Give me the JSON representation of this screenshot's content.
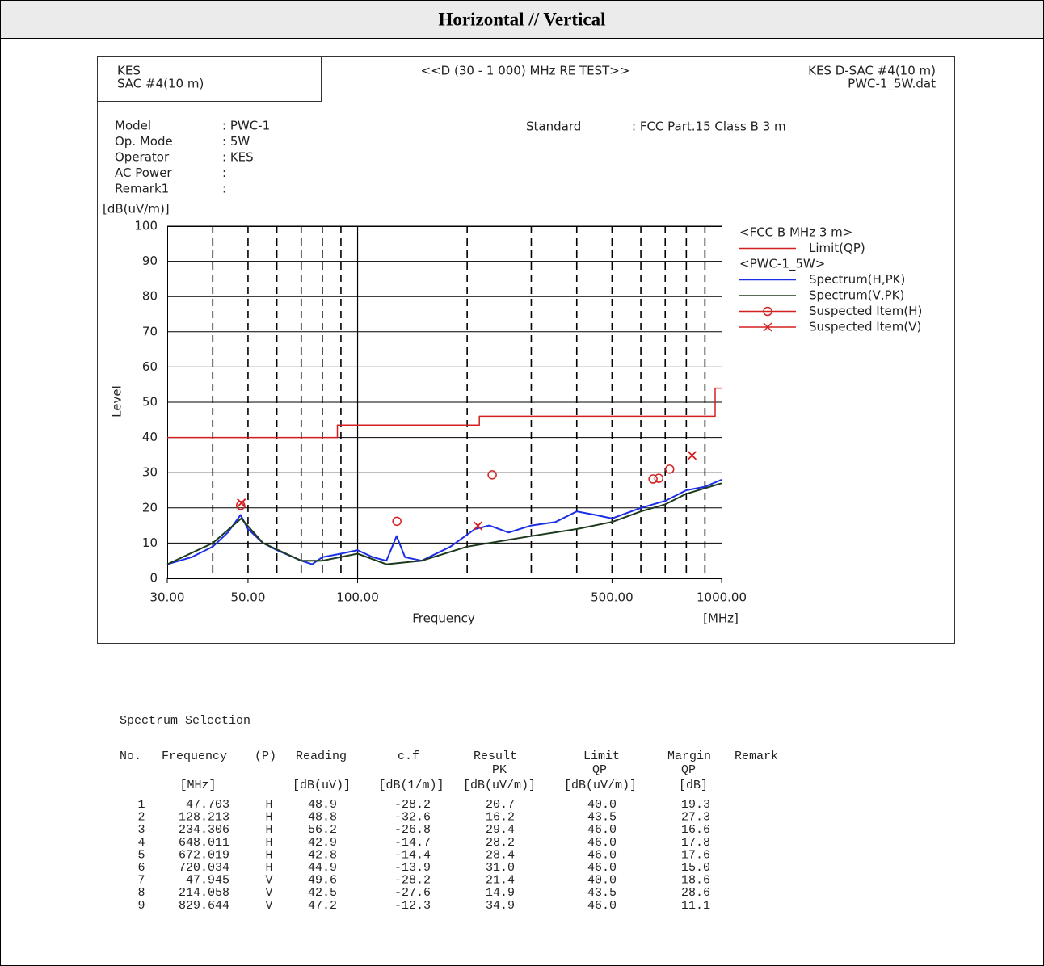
{
  "header": {
    "title": "Horizontal // Vertical"
  },
  "report": {
    "lab": [
      "KES",
      "SAC #4(10 m)"
    ],
    "test": "<<D (30 - 1 000) MHz RE TEST>>",
    "site": [
      "KES D-SAC #4(10 m)",
      "PWC-1_5W.dat"
    ],
    "fields": [
      {
        "label": "Model",
        "value": ": PWC-1"
      },
      {
        "label": "Op. Mode",
        "value": ": 5W"
      },
      {
        "label": "Operator",
        "value": ": KES"
      },
      {
        "label": "AC Power",
        "value": ":"
      },
      {
        "label": "Remark1",
        "value": ":"
      }
    ],
    "standard": {
      "label": "Standard",
      "value": ": FCC Part.15 Class B 3 m"
    }
  },
  "chart_data": {
    "type": "line",
    "y_unit": "[dB(uV/m)]",
    "ylabel": "Level",
    "xlabel": "Frequency",
    "x_unit": "[MHz]",
    "xscale": "log",
    "xlim": [
      30,
      1000
    ],
    "ylim": [
      0,
      100
    ],
    "yticks": [
      0,
      10,
      20,
      30,
      40,
      50,
      60,
      70,
      80,
      90,
      100
    ],
    "xticks": [
      {
        "value": 30,
        "label": "30.00"
      },
      {
        "value": 50,
        "label": "50.00"
      },
      {
        "value": 100,
        "label": "100.00"
      },
      {
        "value": 500,
        "label": "500.00"
      },
      {
        "value": 1000,
        "label": "1000.00"
      }
    ],
    "xgrid": [
      40,
      50,
      60,
      70,
      80,
      90,
      100,
      200,
      300,
      400,
      500,
      600,
      700,
      800,
      900
    ],
    "grid": true,
    "legend_titles": [
      "<FCC B MHz 3 m>",
      "<PWC-1_5W>"
    ],
    "series": [
      {
        "name": "Limit(QP)",
        "color": "#d42020",
        "marker": "none",
        "x": [
          30,
          88,
          88,
          216,
          216,
          960,
          960,
          1000
        ],
        "values": [
          40,
          40,
          43.5,
          43.5,
          46,
          46,
          54,
          54
        ]
      },
      {
        "name": "Spectrum(H,PK)",
        "color": "#1a2ee6",
        "marker": "none",
        "x": [
          30,
          35,
          40,
          44,
          47.7,
          50,
          55,
          60,
          70,
          75,
          80,
          90,
          100,
          110,
          120,
          128,
          135,
          150,
          180,
          210,
          230,
          260,
          300,
          350,
          400,
          450,
          500,
          600,
          700,
          800,
          900,
          1000
        ],
        "values": [
          4,
          6,
          9,
          13,
          18,
          14,
          10,
          8,
          5,
          4,
          6,
          7,
          8,
          6,
          5,
          12,
          6,
          5,
          9,
          14,
          15,
          13,
          15,
          16,
          19,
          18,
          17,
          20,
          22,
          25,
          26,
          28
        ]
      },
      {
        "name": "Spectrum(V,PK)",
        "color": "#1e3a1e",
        "marker": "none",
        "x": [
          30,
          40,
          47.9,
          55,
          70,
          80,
          100,
          120,
          150,
          200,
          300,
          400,
          500,
          600,
          700,
          800,
          1000
        ],
        "values": [
          4,
          10,
          17,
          10,
          5,
          5,
          7,
          4,
          5,
          9,
          12,
          14,
          16,
          19,
          21,
          24,
          27
        ]
      },
      {
        "name": "Suspected Item(H)",
        "color": "#d42020",
        "marker": "circle",
        "x": [
          47.703,
          128.213,
          234.306,
          648.011,
          672.019,
          720.034
        ],
        "values": [
          20.7,
          16.2,
          29.4,
          28.2,
          28.4,
          31.0
        ]
      },
      {
        "name": "Suspected Item(V)",
        "color": "#d42020",
        "marker": "cross",
        "x": [
          47.945,
          214.058,
          829.644
        ],
        "values": [
          21.4,
          14.9,
          34.9
        ]
      }
    ]
  },
  "table": {
    "title": "Spectrum Selection",
    "headers": [
      "No.",
      "Frequency",
      "(P)",
      "Reading",
      "c.f",
      "Result",
      "Limit",
      "Margin",
      "Remark"
    ],
    "subheaders": [
      "PK",
      "QP",
      "QP"
    ],
    "units": [
      "[MHz]",
      "[dB(uV)]",
      "[dB(1/m)]",
      "[dB(uV/m)]",
      "[dB(uV/m)]",
      "[dB]"
    ],
    "rows": [
      [
        "1",
        "47.703",
        "H",
        "48.9",
        "-28.2",
        "20.7",
        "40.0",
        "19.3"
      ],
      [
        "2",
        "128.213",
        "H",
        "48.8",
        "-32.6",
        "16.2",
        "43.5",
        "27.3"
      ],
      [
        "3",
        "234.306",
        "H",
        "56.2",
        "-26.8",
        "29.4",
        "46.0",
        "16.6"
      ],
      [
        "4",
        "648.011",
        "H",
        "42.9",
        "-14.7",
        "28.2",
        "46.0",
        "17.8"
      ],
      [
        "5",
        "672.019",
        "H",
        "42.8",
        "-14.4",
        "28.4",
        "46.0",
        "17.6"
      ],
      [
        "6",
        "720.034",
        "H",
        "44.9",
        "-13.9",
        "31.0",
        "46.0",
        "15.0"
      ],
      [
        "7",
        "47.945",
        "V",
        "49.6",
        "-28.2",
        "21.4",
        "40.0",
        "18.6"
      ],
      [
        "8",
        "214.058",
        "V",
        "42.5",
        "-27.6",
        "14.9",
        "43.5",
        "28.6"
      ],
      [
        "9",
        "829.644",
        "V",
        "47.2",
        "-12.3",
        "34.9",
        "46.0",
        "11.1"
      ]
    ]
  }
}
